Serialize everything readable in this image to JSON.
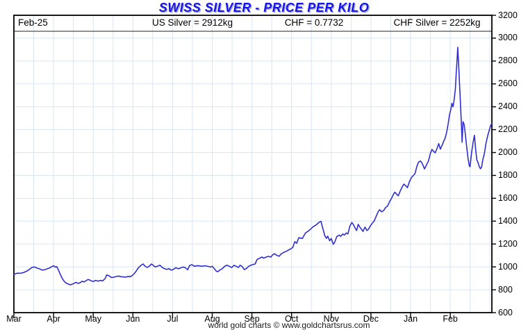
{
  "title": "SWISS SILVER - PRICE PER KILO",
  "header": {
    "date": "Feb-25",
    "us_silver": "US Silver = 2912kg",
    "chf_rate": "CHF = 0.7732",
    "chf_silver": "CHF Silver = 2252kg"
  },
  "footer": "world gold charts © www.goldchartsrus.com",
  "colors": {
    "title": "#1313ee",
    "line": "#2e2ed0",
    "grid": "#d8e5f3",
    "axis": "#000000"
  },
  "chart_data": {
    "type": "line",
    "title": "SWISS SILVER - PRICE PER KILO",
    "xlabel": "",
    "ylabel": "",
    "x_axis": {
      "labels": [
        "Mar",
        "Apr",
        "May",
        "Jun",
        "Jul",
        "Aug",
        "Sep",
        "Oct",
        "Nov",
        "Dec",
        "Jan",
        "Feb"
      ],
      "units": "month index, 0 = Mar tick through 11 = Feb tick, fractional positions between"
    },
    "y_axis": {
      "min": 600,
      "max": 3200,
      "tick_step": 200,
      "side": "right",
      "labels": [
        "600",
        "800",
        "1000",
        "1200",
        "1400",
        "1600",
        "1800",
        "2000",
        "2200",
        "2400",
        "2600",
        "2800",
        "3000",
        "3200"
      ]
    },
    "grid": true,
    "legend": "none",
    "series": [
      {
        "name": "CHF Silver price per kilo",
        "color": "#2e2ed0",
        "last_value_shown_in_header": 2252,
        "points": [
          [
            0,
            935
          ],
          [
            0.08,
            945
          ],
          [
            0.16,
            944
          ],
          [
            0.24,
            950
          ],
          [
            0.32,
            962
          ],
          [
            0.4,
            980
          ],
          [
            0.45,
            994
          ],
          [
            0.52,
            1000
          ],
          [
            0.58,
            990
          ],
          [
            0.65,
            982
          ],
          [
            0.72,
            972
          ],
          [
            0.78,
            976
          ],
          [
            0.85,
            984
          ],
          [
            0.92,
            994
          ],
          [
            0.97,
            1005
          ],
          [
            1.0,
            1010
          ],
          [
            1.04,
            998
          ],
          [
            1.08,
            1002
          ],
          [
            1.12,
            975
          ],
          [
            1.17,
            935
          ],
          [
            1.22,
            898
          ],
          [
            1.27,
            873
          ],
          [
            1.32,
            858
          ],
          [
            1.37,
            850
          ],
          [
            1.42,
            843
          ],
          [
            1.47,
            848
          ],
          [
            1.52,
            857
          ],
          [
            1.57,
            865
          ],
          [
            1.62,
            855
          ],
          [
            1.67,
            862
          ],
          [
            1.72,
            875
          ],
          [
            1.77,
            868
          ],
          [
            1.82,
            880
          ],
          [
            1.87,
            890
          ],
          [
            1.92,
            884
          ],
          [
            1.96,
            876
          ],
          [
            2.0,
            873
          ],
          [
            2.06,
            882
          ],
          [
            2.12,
            876
          ],
          [
            2.18,
            882
          ],
          [
            2.24,
            878
          ],
          [
            2.3,
            898
          ],
          [
            2.34,
            930
          ],
          [
            2.4,
            922
          ],
          [
            2.46,
            906
          ],
          [
            2.52,
            910
          ],
          [
            2.58,
            916
          ],
          [
            2.64,
            920
          ],
          [
            2.7,
            914
          ],
          [
            2.76,
            912
          ],
          [
            2.82,
            910
          ],
          [
            2.88,
            917
          ],
          [
            2.94,
            914
          ],
          [
            3.0,
            930
          ],
          [
            3.04,
            944
          ],
          [
            3.08,
            962
          ],
          [
            3.12,
            984
          ],
          [
            3.16,
            1000
          ],
          [
            3.22,
            1018
          ],
          [
            3.26,
            1025
          ],
          [
            3.3,
            1008
          ],
          [
            3.36,
            995
          ],
          [
            3.41,
            1005
          ],
          [
            3.47,
            1025
          ],
          [
            3.5,
            1018
          ],
          [
            3.56,
            999
          ],
          [
            3.62,
            1006
          ],
          [
            3.68,
            1015
          ],
          [
            3.74,
            995
          ],
          [
            3.8,
            984
          ],
          [
            3.85,
            978
          ],
          [
            3.91,
            985
          ],
          [
            3.96,
            971
          ],
          [
            4.02,
            978
          ],
          [
            4.08,
            993
          ],
          [
            4.14,
            984
          ],
          [
            4.2,
            990
          ],
          [
            4.26,
            999
          ],
          [
            4.32,
            993
          ],
          [
            4.38,
            975
          ],
          [
            4.43,
            1013
          ],
          [
            4.49,
            1019
          ],
          [
            4.55,
            1005
          ],
          [
            4.64,
            1011
          ],
          [
            4.73,
            1005
          ],
          [
            4.82,
            1010
          ],
          [
            4.9,
            1004
          ],
          [
            4.96,
            999
          ],
          [
            5.0,
            1005
          ],
          [
            5.05,
            985
          ],
          [
            5.1,
            964
          ],
          [
            5.14,
            958
          ],
          [
            5.2,
            974
          ],
          [
            5.25,
            984
          ],
          [
            5.31,
            1004
          ],
          [
            5.37,
            1015
          ],
          [
            5.43,
            1005
          ],
          [
            5.49,
            994
          ],
          [
            5.55,
            1014
          ],
          [
            5.6,
            1005
          ],
          [
            5.66,
            995
          ],
          [
            5.7,
            1014
          ],
          [
            5.75,
            1005
          ],
          [
            5.81,
            976
          ],
          [
            5.86,
            986
          ],
          [
            5.92,
            1005
          ],
          [
            5.97,
            1014
          ],
          [
            6.01,
            1019
          ],
          [
            6.08,
            1025
          ],
          [
            6.13,
            1064
          ],
          [
            6.19,
            1075
          ],
          [
            6.25,
            1086
          ],
          [
            6.3,
            1077
          ],
          [
            6.36,
            1086
          ],
          [
            6.42,
            1092
          ],
          [
            6.48,
            1086
          ],
          [
            6.52,
            1105
          ],
          [
            6.57,
            1115
          ],
          [
            6.63,
            1100
          ],
          [
            6.69,
            1093
          ],
          [
            6.74,
            1115
          ],
          [
            6.8,
            1126
          ],
          [
            6.86,
            1136
          ],
          [
            6.92,
            1146
          ],
          [
            6.98,
            1158
          ],
          [
            7.03,
            1170
          ],
          [
            7.08,
            1220
          ],
          [
            7.13,
            1207
          ],
          [
            7.18,
            1255
          ],
          [
            7.27,
            1248
          ],
          [
            7.35,
            1296
          ],
          [
            7.44,
            1318
          ],
          [
            7.53,
            1348
          ],
          [
            7.62,
            1368
          ],
          [
            7.7,
            1392
          ],
          [
            7.74,
            1398
          ],
          [
            7.8,
            1320
          ],
          [
            7.84,
            1270
          ],
          [
            7.88,
            1250
          ],
          [
            7.91,
            1268
          ],
          [
            7.96,
            1228
          ],
          [
            8.0,
            1248
          ],
          [
            8.05,
            1197
          ],
          [
            8.09,
            1217
          ],
          [
            8.14,
            1266
          ],
          [
            8.2,
            1278
          ],
          [
            8.24,
            1267
          ],
          [
            8.29,
            1288
          ],
          [
            8.33,
            1278
          ],
          [
            8.38,
            1297
          ],
          [
            8.42,
            1288
          ],
          [
            8.47,
            1357
          ],
          [
            8.52,
            1388
          ],
          [
            8.56,
            1368
          ],
          [
            8.6,
            1340
          ],
          [
            8.64,
            1318
          ],
          [
            8.68,
            1372
          ],
          [
            8.72,
            1348
          ],
          [
            8.76,
            1330
          ],
          [
            8.8,
            1310
          ],
          [
            8.85,
            1348
          ],
          [
            8.9,
            1318
          ],
          [
            8.94,
            1330
          ],
          [
            8.98,
            1355
          ],
          [
            9.03,
            1380
          ],
          [
            9.08,
            1400
          ],
          [
            9.13,
            1440
          ],
          [
            9.18,
            1480
          ],
          [
            9.22,
            1500
          ],
          [
            9.27,
            1482
          ],
          [
            9.32,
            1492
          ],
          [
            9.37,
            1520
          ],
          [
            9.42,
            1532
          ],
          [
            9.47,
            1570
          ],
          [
            9.52,
            1600
          ],
          [
            9.56,
            1630
          ],
          [
            9.6,
            1653
          ],
          [
            9.65,
            1636
          ],
          [
            9.69,
            1622
          ],
          [
            9.74,
            1665
          ],
          [
            9.79,
            1700
          ],
          [
            9.83,
            1724
          ],
          [
            9.88,
            1708
          ],
          [
            9.92,
            1693
          ],
          [
            9.97,
            1745
          ],
          [
            10.02,
            1780
          ],
          [
            10.07,
            1800
          ],
          [
            10.11,
            1815
          ],
          [
            10.16,
            1880
          ],
          [
            10.2,
            1916
          ],
          [
            10.25,
            1926
          ],
          [
            10.3,
            1900
          ],
          [
            10.35,
            1856
          ],
          [
            10.4,
            1890
          ],
          [
            10.45,
            1926
          ],
          [
            10.5,
            1995
          ],
          [
            10.54,
            2027
          ],
          [
            10.58,
            2010
          ],
          [
            10.62,
            1997
          ],
          [
            10.67,
            2040
          ],
          [
            10.71,
            2078
          ],
          [
            10.75,
            2030
          ],
          [
            10.79,
            2060
          ],
          [
            10.83,
            2095
          ],
          [
            10.87,
            2125
          ],
          [
            10.91,
            2180
          ],
          [
            10.95,
            2255
          ],
          [
            10.98,
            2330
          ],
          [
            11.01,
            2370
          ],
          [
            11.04,
            2430
          ],
          [
            11.07,
            2400
          ],
          [
            11.1,
            2465
          ],
          [
            11.13,
            2560
          ],
          [
            11.15,
            2700
          ],
          [
            11.17,
            2800
          ],
          [
            11.19,
            2920
          ],
          [
            11.22,
            2700
          ],
          [
            11.25,
            2480
          ],
          [
            11.28,
            2250
          ],
          [
            11.3,
            2090
          ],
          [
            11.32,
            2270
          ],
          [
            11.35,
            2245
          ],
          [
            11.38,
            2160
          ],
          [
            11.42,
            2030
          ],
          [
            11.45,
            1945
          ],
          [
            11.48,
            1885
          ],
          [
            11.5,
            1876
          ],
          [
            11.54,
            2005
          ],
          [
            11.58,
            2095
          ],
          [
            11.61,
            2150
          ],
          [
            11.64,
            2030
          ],
          [
            11.67,
            1935
          ],
          [
            11.7,
            1912
          ],
          [
            11.73,
            1878
          ],
          [
            11.76,
            1858
          ],
          [
            11.79,
            1872
          ],
          [
            11.82,
            1935
          ],
          [
            11.86,
            1990
          ],
          [
            11.9,
            2080
          ],
          [
            11.94,
            2142
          ],
          [
            11.98,
            2192
          ],
          [
            12.02,
            2238
          ],
          [
            12.05,
            2252
          ]
        ]
      }
    ]
  }
}
